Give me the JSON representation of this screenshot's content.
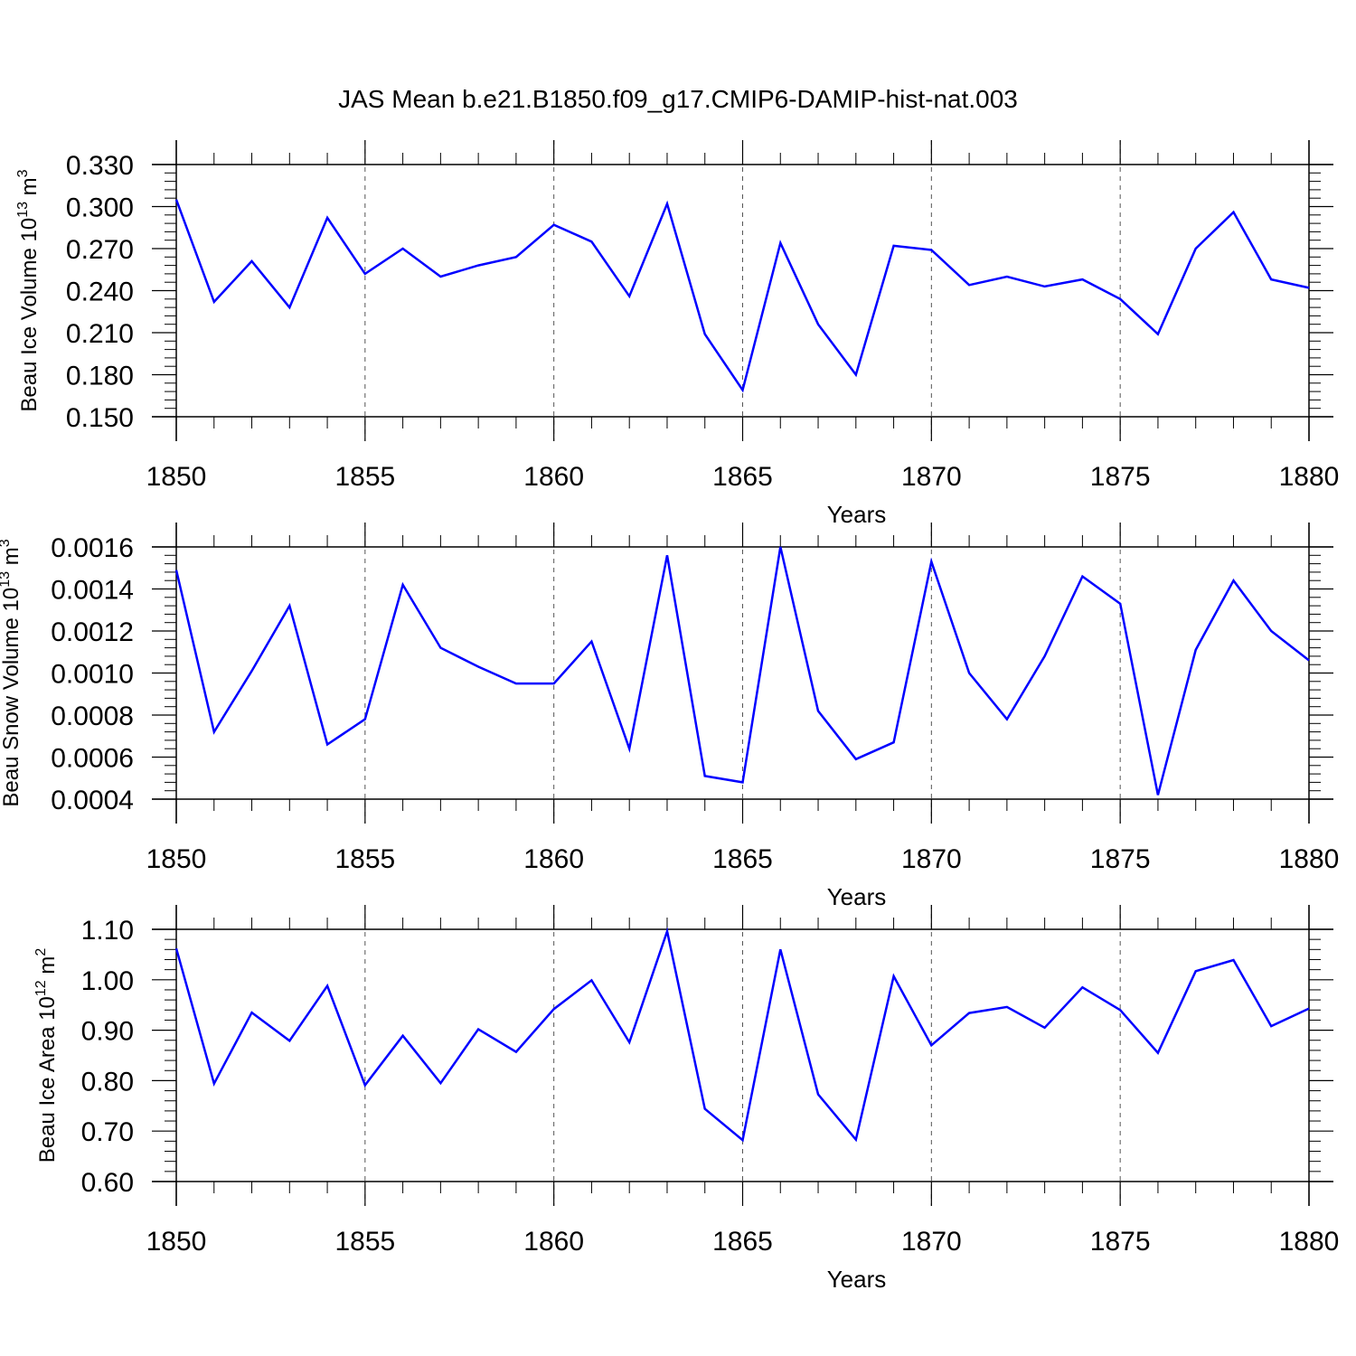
{
  "figure": {
    "title": "JAS Mean b.e21.B1850.f09_g17.CMIP6-DAMIP-hist-nat.003"
  },
  "chart_data": [
    {
      "type": "line",
      "title": "JAS Mean b.e21.B1850.f09_g17.CMIP6-DAMIP-hist-nat.003",
      "xlabel": "Years",
      "ylabel": "Beau Ice Volume 10",
      "ylabel_sup": "13",
      "ylabel_unit": " m",
      "ylabel_unit_sup": "3",
      "xlim": [
        1850,
        1880
      ],
      "ylim": [
        0.15,
        0.33
      ],
      "xticks": [
        "1850",
        "1855",
        "1860",
        "1865",
        "1870",
        "1875",
        "1880"
      ],
      "yticks": [
        "0.150",
        "0.180",
        "0.210",
        "0.240",
        "0.270",
        "0.300",
        "0.330"
      ],
      "ytick_values": [
        0.15,
        0.18,
        0.21,
        0.24,
        0.27,
        0.3,
        0.33
      ],
      "grid": "vertical dashed at major x ticks",
      "color": "#0000ff",
      "x": [
        1850,
        1851,
        1852,
        1853,
        1854,
        1855,
        1856,
        1857,
        1858,
        1859,
        1860,
        1861,
        1862,
        1863,
        1864,
        1865,
        1866,
        1867,
        1868,
        1869,
        1870,
        1871,
        1872,
        1873,
        1874,
        1875,
        1876,
        1877,
        1878,
        1879,
        1880
      ],
      "y": [
        0.305,
        0.232,
        0.261,
        0.228,
        0.292,
        0.252,
        0.27,
        0.25,
        0.258,
        0.264,
        0.287,
        0.275,
        0.236,
        0.302,
        0.209,
        0.169,
        0.274,
        0.216,
        0.18,
        0.272,
        0.269,
        0.244,
        0.25,
        0.243,
        0.248,
        0.234,
        0.209,
        0.27,
        0.296,
        0.248,
        0.242
      ]
    },
    {
      "type": "line",
      "xlabel": "Years",
      "ylabel": "Beau Snow Volume 10",
      "ylabel_sup": "13",
      "ylabel_unit": " m",
      "ylabel_unit_sup": "3",
      "xlim": [
        1850,
        1880
      ],
      "ylim": [
        0.0004,
        0.0016
      ],
      "xticks": [
        "1850",
        "1855",
        "1860",
        "1865",
        "1870",
        "1875",
        "1880"
      ],
      "yticks": [
        "0.0004",
        "0.0006",
        "0.0008",
        "0.0010",
        "0.0012",
        "0.0014",
        "0.0016"
      ],
      "ytick_values": [
        0.0004,
        0.0006,
        0.0008,
        0.001,
        0.0012,
        0.0014,
        0.0016
      ],
      "grid": "vertical dashed at major x ticks",
      "color": "#0000ff",
      "x": [
        1850,
        1851,
        1852,
        1853,
        1854,
        1855,
        1856,
        1857,
        1858,
        1859,
        1860,
        1861,
        1862,
        1863,
        1864,
        1865,
        1866,
        1867,
        1868,
        1869,
        1870,
        1871,
        1872,
        1873,
        1874,
        1875,
        1876,
        1877,
        1878,
        1879,
        1880
      ],
      "y": [
        0.00149,
        0.00072,
        0.00101,
        0.00132,
        0.00066,
        0.00078,
        0.00142,
        0.00112,
        0.00103,
        0.00095,
        0.00095,
        0.00115,
        0.00064,
        0.00156,
        0.00051,
        0.00048,
        0.0016,
        0.00082,
        0.00059,
        0.00067,
        0.00153,
        0.001,
        0.00078,
        0.00108,
        0.00146,
        0.00133,
        0.00042,
        0.00111,
        0.00144,
        0.0012,
        0.00106
      ]
    },
    {
      "type": "line",
      "xlabel": "Years",
      "ylabel": "Beau Ice Area 10",
      "ylabel_sup": "12",
      "ylabel_unit": " m",
      "ylabel_unit_sup": "2",
      "xlim": [
        1850,
        1880
      ],
      "ylim": [
        0.6,
        1.1
      ],
      "xticks": [
        "1850",
        "1855",
        "1860",
        "1865",
        "1870",
        "1875",
        "1880"
      ],
      "yticks": [
        "0.60",
        "0.70",
        "0.80",
        "0.90",
        "1.00",
        "1.10"
      ],
      "ytick_values": [
        0.6,
        0.7,
        0.8,
        0.9,
        1.0,
        1.1
      ],
      "grid": "vertical dashed at major x ticks",
      "color": "#0000ff",
      "x": [
        1850,
        1851,
        1852,
        1853,
        1854,
        1855,
        1856,
        1857,
        1858,
        1859,
        1860,
        1861,
        1862,
        1863,
        1864,
        1865,
        1866,
        1867,
        1868,
        1869,
        1870,
        1871,
        1872,
        1873,
        1874,
        1875,
        1876,
        1877,
        1878,
        1879,
        1880
      ],
      "y": [
        1.062,
        0.794,
        0.935,
        0.879,
        0.988,
        0.791,
        0.889,
        0.795,
        0.902,
        0.857,
        0.942,
        0.999,
        0.876,
        1.096,
        0.744,
        0.682,
        1.06,
        0.773,
        0.683,
        1.007,
        0.87,
        0.934,
        0.946,
        0.905,
        0.985,
        0.94,
        0.855,
        1.017,
        1.039,
        0.908,
        0.943
      ]
    }
  ]
}
